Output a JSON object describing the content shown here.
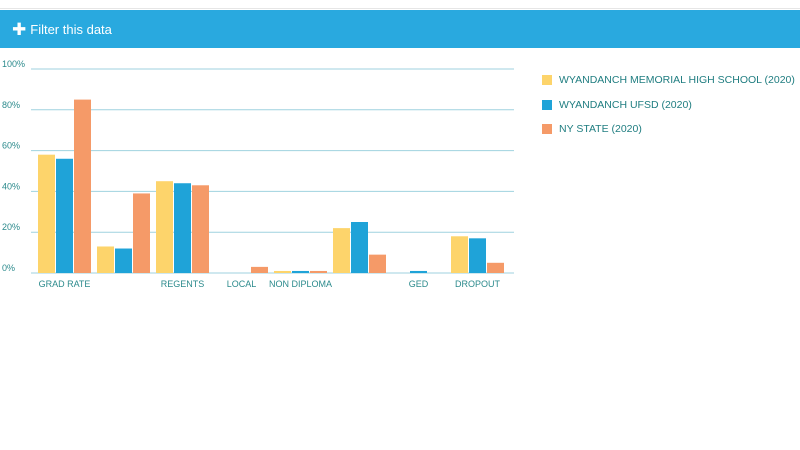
{
  "filter": {
    "label": "Filter this data",
    "icon": "plus-icon"
  },
  "colors": {
    "header": "#29a9df",
    "axis_text": "#2b8a8c",
    "grid": "#9fd2df",
    "series": [
      "#fdd46b",
      "#1fa3d8",
      "#f59a68"
    ]
  },
  "chart_data": {
    "type": "bar",
    "categories": [
      "GRAD RATE",
      "",
      "REGENTS",
      "LOCAL",
      "NON DIPLOMA",
      "",
      "GED",
      "DROPOUT"
    ],
    "series": [
      {
        "name": "WYANDANCH MEMORIAL HIGH SCHOOL (2020)",
        "values": [
          58,
          13,
          45,
          0,
          1,
          22,
          0,
          18
        ]
      },
      {
        "name": "WYANDANCH UFSD (2020)",
        "values": [
          56,
          12,
          44,
          0,
          1,
          25,
          1,
          17
        ]
      },
      {
        "name": "NY STATE (2020)",
        "values": [
          85,
          39,
          43,
          3,
          1,
          9,
          0,
          5
        ]
      }
    ],
    "yticks": [
      "0%",
      "20%",
      "40%",
      "60%",
      "80%",
      "100%"
    ],
    "ylim": [
      0,
      100
    ],
    "grid": true,
    "legend_position": "right"
  }
}
